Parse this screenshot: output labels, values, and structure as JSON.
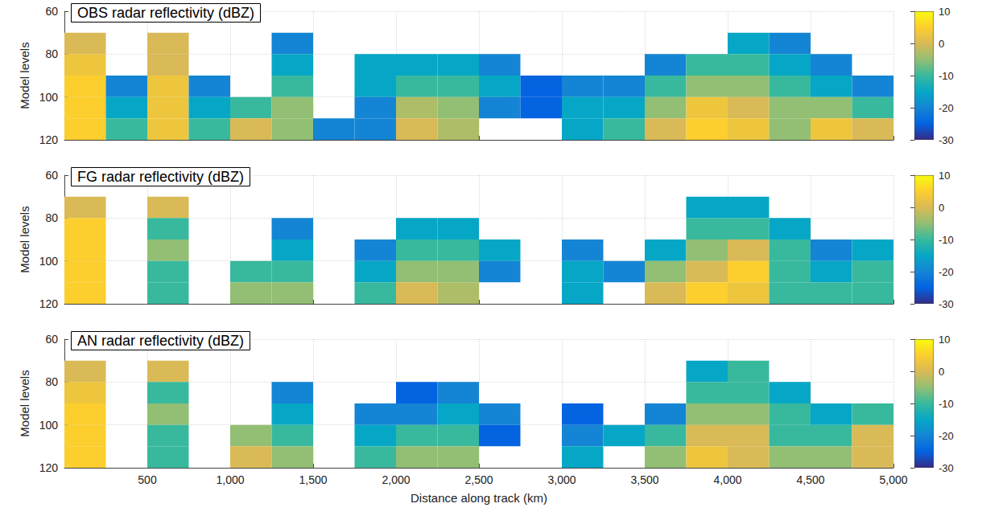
{
  "chart_data": [
    {
      "type": "heatmap",
      "title": "OBS radar reflectivity (dBZ)",
      "ylabel": "Model levels",
      "xlim": [
        0,
        5000
      ],
      "xticks": [
        500,
        1000,
        1500,
        2000,
        2500,
        3000,
        3500,
        4000,
        4500,
        5000
      ],
      "ylim": [
        120,
        60
      ],
      "yticks": [
        60,
        80,
        100,
        120
      ],
      "grid": true,
      "x_bins": [
        0,
        250,
        500,
        750,
        1000,
        1250,
        1500,
        1750,
        2000,
        2250,
        2500,
        2750,
        3000,
        3250,
        3500,
        3750,
        4000,
        4250,
        4500,
        4750,
        5000
      ],
      "y_bins": [
        60,
        70,
        80,
        90,
        100,
        110,
        120
      ],
      "cells": [
        [
          null,
          0,
          3,
          5,
          5,
          5
        ],
        [
          null,
          null,
          null,
          -20,
          -15,
          -10
        ],
        [
          null,
          0,
          0,
          3,
          3,
          3
        ],
        [
          null,
          null,
          null,
          -20,
          -15,
          -10
        ],
        [
          null,
          null,
          null,
          null,
          -10,
          0
        ],
        [
          null,
          -20,
          -15,
          -10,
          -5,
          -5
        ],
        [
          null,
          null,
          null,
          null,
          null,
          -20
        ],
        [
          null,
          null,
          -15,
          -15,
          -20,
          -20
        ],
        [
          null,
          null,
          -15,
          -10,
          -3,
          0
        ],
        [
          null,
          null,
          -15,
          -10,
          -5,
          -3
        ],
        [
          null,
          null,
          -20,
          -15,
          -20,
          null
        ],
        [
          null,
          null,
          null,
          -25,
          -25,
          null
        ],
        [
          null,
          null,
          null,
          -20,
          -15,
          -15
        ],
        [
          null,
          null,
          null,
          -20,
          -15,
          -10
        ],
        [
          null,
          null,
          -20,
          -10,
          -5,
          0
        ],
        [
          null,
          null,
          -10,
          -5,
          3,
          5
        ],
        [
          null,
          -15,
          -10,
          -5,
          0,
          3
        ],
        [
          null,
          -20,
          -15,
          -10,
          -5,
          -5
        ],
        [
          null,
          null,
          -20,
          -15,
          -5,
          3
        ],
        [
          null,
          null,
          null,
          -20,
          -10,
          0
        ]
      ],
      "colorbar": {
        "lim": [
          -30,
          10
        ],
        "ticks": [
          -30,
          -20,
          -10,
          0,
          10
        ]
      }
    },
    {
      "type": "heatmap",
      "title": "FG radar reflectivity (dBZ)",
      "ylabel": "Model levels",
      "xlim": [
        0,
        5000
      ],
      "xticks": [
        500,
        1000,
        1500,
        2000,
        2500,
        3000,
        3500,
        4000,
        4500,
        5000
      ],
      "ylim": [
        120,
        60
      ],
      "yticks": [
        60,
        80,
        100,
        120
      ],
      "grid": true,
      "x_bins": [
        0,
        250,
        500,
        750,
        1000,
        1250,
        1500,
        1750,
        2000,
        2250,
        2500,
        2750,
        3000,
        3250,
        3500,
        3750,
        4000,
        4250,
        4500,
        4750,
        5000
      ],
      "y_bins": [
        60,
        70,
        80,
        90,
        100,
        110,
        120
      ],
      "cells": [
        [
          null,
          0,
          5,
          5,
          5,
          5
        ],
        [
          null,
          null,
          null,
          null,
          null,
          null
        ],
        [
          null,
          0,
          -10,
          -5,
          -10,
          -10
        ],
        [
          null,
          null,
          null,
          null,
          null,
          null
        ],
        [
          null,
          null,
          null,
          null,
          -10,
          -5
        ],
        [
          null,
          null,
          -20,
          -15,
          -10,
          -5
        ],
        [
          null,
          null,
          null,
          null,
          null,
          null
        ],
        [
          null,
          null,
          null,
          -20,
          -15,
          -10
        ],
        [
          null,
          null,
          -15,
          -10,
          -5,
          0
        ],
        [
          null,
          null,
          -15,
          -10,
          -5,
          -3
        ],
        [
          null,
          null,
          null,
          -15,
          -20,
          null
        ],
        [
          null,
          null,
          null,
          null,
          null,
          null
        ],
        [
          null,
          null,
          null,
          -20,
          -15,
          -15
        ],
        [
          null,
          null,
          null,
          null,
          -20,
          null
        ],
        [
          null,
          null,
          null,
          -15,
          -5,
          0
        ],
        [
          null,
          -15,
          -10,
          -5,
          0,
          5
        ],
        [
          null,
          -15,
          -10,
          0,
          5,
          3
        ],
        [
          null,
          null,
          -15,
          -10,
          -10,
          -10
        ],
        [
          null,
          null,
          null,
          -20,
          -15,
          -10
        ],
        [
          null,
          null,
          null,
          -15,
          -10,
          -10
        ]
      ],
      "colorbar": {
        "lim": [
          -30,
          10
        ],
        "ticks": [
          -30,
          -20,
          -10,
          0,
          10
        ]
      }
    },
    {
      "type": "heatmap",
      "title": "AN radar reflectivity (dBZ)",
      "ylabel": "Model levels",
      "xlabel": "Distance along track (km)",
      "xlim": [
        0,
        5000
      ],
      "xticks": [
        500,
        1000,
        1500,
        2000,
        2500,
        3000,
        3500,
        4000,
        4500,
        5000
      ],
      "ylim": [
        120,
        60
      ],
      "yticks": [
        60,
        80,
        100,
        120
      ],
      "grid": true,
      "x_bins": [
        0,
        250,
        500,
        750,
        1000,
        1250,
        1500,
        1750,
        2000,
        2250,
        2500,
        2750,
        3000,
        3250,
        3500,
        3750,
        4000,
        4250,
        4500,
        4750,
        5000
      ],
      "y_bins": [
        60,
        70,
        80,
        90,
        100,
        110,
        120
      ],
      "cells": [
        [
          null,
          0,
          3,
          5,
          5,
          5
        ],
        [
          null,
          null,
          null,
          null,
          null,
          null
        ],
        [
          null,
          0,
          -10,
          -5,
          -10,
          -10
        ],
        [
          null,
          null,
          null,
          null,
          null,
          null
        ],
        [
          null,
          null,
          null,
          null,
          -5,
          0
        ],
        [
          null,
          null,
          -20,
          -15,
          -10,
          -5
        ],
        [
          null,
          null,
          null,
          null,
          null,
          null
        ],
        [
          null,
          null,
          null,
          -20,
          -15,
          -10
        ],
        [
          null,
          null,
          -25,
          -20,
          -10,
          -5
        ],
        [
          null,
          null,
          -20,
          -15,
          -10,
          -5
        ],
        [
          null,
          null,
          null,
          -20,
          -25,
          null
        ],
        [
          null,
          null,
          null,
          null,
          null,
          null
        ],
        [
          null,
          null,
          null,
          -25,
          -20,
          -15
        ],
        [
          null,
          null,
          null,
          null,
          -15,
          null
        ],
        [
          null,
          null,
          null,
          -20,
          -10,
          -5
        ],
        [
          null,
          -15,
          -10,
          -5,
          0,
          3
        ],
        [
          null,
          -10,
          -10,
          -5,
          0,
          0
        ],
        [
          null,
          null,
          -15,
          -10,
          -10,
          -5
        ],
        [
          null,
          null,
          null,
          -15,
          -10,
          -5
        ],
        [
          null,
          null,
          null,
          -10,
          0,
          0
        ]
      ],
      "colorbar": {
        "lim": [
          -30,
          10
        ],
        "ticks": [
          -30,
          -20,
          -10,
          0,
          10
        ]
      }
    }
  ]
}
